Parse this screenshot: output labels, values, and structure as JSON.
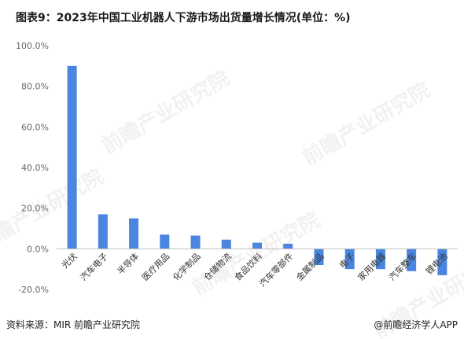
{
  "title": "图表9：2023年中国工业机器人下游市场出货量增长情况(单位：%)",
  "source": "资料来源：MIR 前瞻产业研究院",
  "credit": "@前瞻经济学人APP",
  "watermark": "前瞻产业研究院",
  "colors": {
    "bar": "#4a86e0",
    "axis": "#999999",
    "text": "#333333"
  },
  "chart_data": {
    "type": "bar",
    "title": "图表9：2023年中国工业机器人下游市场出货量增长情况(单位：%)",
    "xlabel": "",
    "ylabel": "",
    "ylim": [
      -20,
      100
    ],
    "yticks": [
      100,
      80,
      60,
      40,
      20,
      0,
      -20
    ],
    "ytick_labels": [
      "100.0%",
      "80.0%",
      "60.0%",
      "40.0%",
      "20.0%",
      "0.0%",
      "-20.0%"
    ],
    "grid": false,
    "categories": [
      "光伏",
      "汽车电子",
      "半导体",
      "医疗用品",
      "化学制品",
      "仓储物流",
      "食品饮料",
      "汽车零部件",
      "金属制品",
      "电子",
      "家用电器",
      "汽车整车",
      "锂电池"
    ],
    "values": [
      90,
      17,
      15,
      7,
      6.5,
      4.5,
      3,
      2.5,
      -8,
      -10,
      -10,
      -11,
      -13
    ]
  }
}
